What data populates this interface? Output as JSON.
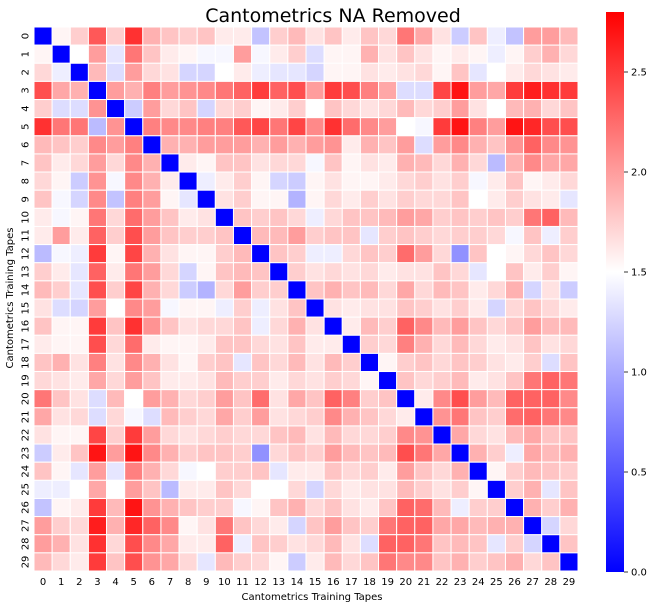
{
  "chart_data": {
    "type": "heatmap",
    "title": "Cantometrics NA Removed",
    "xlabel": "Cantometrics Training Tapes",
    "ylabel": "Cantometrics Training Tapes",
    "row_labels": [
      "0",
      "1",
      "2",
      "3",
      "4",
      "5",
      "6",
      "7",
      "8",
      "9",
      "10",
      "11",
      "12",
      "13",
      "14",
      "15",
      "16",
      "17",
      "18",
      "19",
      "20",
      "21",
      "22",
      "23",
      "24",
      "25",
      "26",
      "27",
      "28",
      "29"
    ],
    "col_labels": [
      "0",
      "1",
      "2",
      "3",
      "4",
      "5",
      "6",
      "7",
      "8",
      "9",
      "10",
      "11",
      "12",
      "13",
      "14",
      "15",
      "16",
      "17",
      "18",
      "19",
      "20",
      "21",
      "22",
      "23",
      "24",
      "25",
      "26",
      "27",
      "28",
      "29"
    ],
    "values": [
      [
        0.0,
        1.55,
        1.75,
        2.35,
        1.75,
        2.55,
        1.9,
        1.8,
        1.75,
        1.8,
        1.6,
        1.6,
        1.15,
        1.75,
        1.85,
        1.65,
        1.8,
        1.6,
        1.8,
        1.7,
        2.2,
        1.95,
        1.65,
        1.2,
        1.8,
        1.4,
        1.15,
        2.0,
        2.0,
        1.85
      ],
      [
        1.55,
        0.0,
        1.5,
        2.0,
        1.35,
        2.2,
        1.8,
        1.6,
        1.55,
        1.45,
        1.45,
        2.0,
        1.45,
        1.6,
        1.75,
        1.3,
        1.55,
        1.55,
        1.9,
        1.65,
        1.8,
        1.65,
        1.55,
        1.6,
        1.55,
        1.4,
        1.55,
        1.75,
        1.9,
        1.7
      ],
      [
        1.7,
        1.4,
        0.0,
        1.85,
        1.3,
        2.0,
        1.7,
        1.65,
        1.25,
        1.25,
        1.5,
        1.6,
        1.4,
        1.35,
        1.35,
        1.25,
        1.55,
        1.55,
        1.65,
        1.6,
        1.65,
        1.7,
        1.55,
        1.8,
        1.35,
        1.5,
        1.6,
        1.7,
        1.65,
        1.6
      ],
      [
        2.4,
        1.95,
        1.9,
        0.0,
        2.0,
        1.9,
        2.15,
        2.0,
        2.05,
        2.1,
        2.2,
        2.3,
        2.5,
        2.3,
        2.4,
        2.0,
        2.5,
        2.4,
        2.15,
        1.95,
        1.3,
        1.3,
        2.45,
        2.7,
        2.0,
        1.95,
        2.5,
        2.65,
        2.55,
        2.5
      ],
      [
        1.75,
        1.3,
        1.3,
        2.05,
        0.0,
        1.2,
        2.0,
        1.7,
        1.8,
        1.25,
        1.7,
        1.75,
        1.55,
        1.6,
        1.75,
        1.5,
        1.8,
        1.7,
        1.65,
        1.7,
        1.85,
        1.7,
        1.75,
        2.0,
        1.65,
        1.5,
        1.85,
        1.9,
        1.7,
        1.8
      ],
      [
        2.55,
        2.2,
        2.2,
        1.1,
        2.05,
        0.0,
        2.15,
        2.1,
        2.1,
        2.15,
        2.15,
        2.35,
        2.45,
        2.2,
        2.45,
        2.1,
        2.55,
        2.25,
        2.1,
        2.0,
        1.5,
        1.45,
        2.5,
        2.7,
        2.15,
        2.0,
        2.7,
        2.6,
        2.4,
        2.4
      ],
      [
        1.85,
        1.8,
        1.75,
        2.1,
        2.0,
        2.15,
        0.0,
        1.9,
        1.9,
        2.0,
        2.0,
        2.0,
        1.9,
        2.0,
        1.9,
        2.0,
        2.05,
        1.6,
        1.9,
        1.8,
        2.0,
        1.3,
        2.0,
        2.1,
        1.9,
        1.8,
        2.05,
        2.3,
        2.1,
        2.05
      ],
      [
        1.8,
        1.6,
        1.7,
        2.0,
        1.7,
        2.1,
        1.9,
        0.0,
        1.6,
        1.55,
        1.8,
        1.8,
        1.65,
        1.7,
        1.7,
        1.45,
        1.8,
        1.55,
        1.65,
        1.6,
        1.9,
        1.85,
        1.7,
        1.9,
        1.7,
        1.1,
        1.9,
        2.1,
        1.95,
        1.95
      ],
      [
        1.7,
        1.55,
        1.2,
        2.05,
        1.45,
        2.1,
        1.9,
        1.6,
        0.0,
        1.4,
        1.6,
        1.75,
        1.55,
        1.25,
        1.2,
        1.55,
        1.65,
        1.55,
        1.55,
        1.6,
        1.7,
        1.75,
        1.65,
        1.75,
        1.45,
        1.6,
        1.8,
        1.55,
        1.6,
        1.7
      ],
      [
        1.8,
        1.45,
        1.25,
        2.1,
        1.15,
        2.15,
        2.0,
        1.55,
        1.35,
        0.0,
        1.65,
        1.75,
        1.55,
        1.55,
        1.05,
        1.55,
        1.7,
        1.6,
        1.75,
        1.65,
        1.75,
        1.7,
        1.7,
        1.8,
        1.5,
        1.6,
        1.75,
        1.65,
        1.6,
        1.35
      ],
      [
        1.6,
        1.45,
        1.55,
        2.2,
        1.7,
        2.25,
        2.0,
        1.8,
        1.6,
        1.65,
        0.0,
        1.8,
        1.75,
        1.8,
        1.7,
        1.4,
        1.7,
        1.8,
        1.8,
        1.85,
        2.0,
        1.95,
        1.75,
        1.8,
        1.75,
        1.8,
        1.75,
        2.2,
        2.3,
        1.85
      ],
      [
        1.6,
        2.0,
        1.6,
        2.3,
        1.75,
        2.4,
        2.0,
        1.8,
        1.75,
        1.75,
        1.8,
        0.0,
        1.85,
        1.85,
        2.0,
        1.75,
        1.8,
        1.8,
        1.35,
        1.75,
        1.8,
        1.75,
        1.7,
        1.75,
        1.75,
        1.7,
        1.45,
        1.8,
        1.4,
        1.75
      ],
      [
        1.1,
        1.45,
        1.4,
        2.5,
        1.55,
        2.45,
        1.9,
        1.65,
        1.55,
        1.55,
        1.75,
        1.85,
        0.0,
        1.8,
        1.75,
        1.4,
        1.4,
        1.7,
        1.8,
        1.75,
        2.25,
        2.0,
        1.7,
        0.85,
        1.8,
        1.5,
        1.55,
        1.7,
        1.8,
        1.7
      ],
      [
        1.75,
        1.6,
        1.35,
        2.3,
        1.6,
        2.2,
        2.0,
        1.7,
        1.25,
        1.55,
        1.8,
        1.85,
        1.8,
        0.0,
        1.75,
        1.65,
        1.7,
        1.65,
        1.7,
        1.6,
        1.65,
        1.65,
        1.8,
        1.7,
        1.35,
        1.5,
        1.8,
        1.6,
        1.75,
        1.55
      ],
      [
        1.85,
        1.75,
        1.35,
        2.4,
        1.75,
        2.45,
        1.9,
        1.7,
        1.2,
        1.05,
        1.7,
        2.0,
        1.75,
        1.75,
        0.0,
        1.8,
        1.9,
        1.8,
        1.85,
        1.7,
        1.95,
        1.7,
        1.85,
        1.8,
        1.6,
        1.7,
        1.9,
        1.25,
        1.65,
        1.2
      ],
      [
        1.65,
        1.3,
        1.25,
        2.0,
        1.5,
        2.1,
        2.0,
        1.45,
        1.55,
        1.55,
        1.4,
        1.75,
        1.4,
        1.65,
        1.8,
        0.0,
        1.65,
        1.6,
        1.65,
        1.65,
        1.8,
        1.75,
        1.65,
        1.75,
        1.6,
        1.25,
        1.7,
        1.8,
        1.7,
        1.6
      ],
      [
        1.8,
        1.55,
        1.55,
        2.5,
        1.8,
        2.55,
        2.05,
        1.8,
        1.65,
        1.7,
        1.7,
        1.8,
        1.4,
        1.7,
        1.9,
        1.65,
        0.0,
        1.6,
        1.85,
        1.75,
        2.3,
        2.1,
        1.85,
        2.0,
        1.8,
        1.7,
        1.8,
        2.0,
        1.85,
        1.85
      ],
      [
        1.6,
        1.55,
        1.55,
        2.4,
        1.7,
        2.25,
        1.6,
        1.55,
        1.55,
        1.6,
        1.8,
        1.8,
        1.7,
        1.65,
        1.8,
        1.6,
        1.6,
        0.0,
        1.75,
        1.7,
        2.15,
        1.9,
        1.7,
        1.85,
        1.7,
        1.6,
        1.65,
        1.8,
        1.65,
        1.7
      ],
      [
        1.8,
        1.9,
        1.65,
        2.15,
        1.65,
        2.1,
        1.9,
        1.65,
        1.55,
        1.75,
        1.8,
        1.35,
        1.8,
        1.7,
        1.85,
        1.65,
        1.85,
        1.75,
        0.0,
        1.55,
        1.75,
        1.8,
        1.7,
        1.8,
        1.75,
        1.65,
        1.6,
        1.75,
        1.3,
        1.8
      ],
      [
        1.7,
        1.65,
        1.6,
        1.95,
        1.7,
        2.0,
        1.8,
        1.6,
        1.6,
        1.65,
        1.85,
        1.75,
        1.75,
        1.6,
        1.7,
        1.65,
        1.75,
        1.7,
        1.55,
        0.0,
        1.8,
        1.7,
        1.75,
        1.85,
        1.6,
        1.65,
        1.8,
        2.2,
        2.3,
        2.2
      ],
      [
        2.2,
        1.8,
        1.65,
        1.3,
        1.85,
        1.5,
        2.0,
        1.9,
        1.7,
        1.75,
        2.0,
        1.8,
        2.25,
        1.65,
        1.95,
        1.8,
        2.3,
        2.15,
        1.75,
        1.8,
        0.0,
        1.6,
        2.1,
        2.4,
        2.0,
        1.85,
        2.3,
        2.3,
        2.3,
        2.1
      ],
      [
        1.95,
        1.65,
        1.7,
        1.3,
        1.7,
        1.45,
        1.3,
        1.85,
        1.75,
        1.7,
        1.95,
        1.75,
        2.0,
        1.65,
        1.7,
        1.75,
        2.1,
        1.9,
        1.8,
        1.7,
        1.6,
        0.0,
        2.05,
        2.2,
        1.8,
        1.75,
        2.25,
        2.3,
        2.2,
        2.1
      ],
      [
        1.65,
        1.55,
        1.55,
        2.45,
        1.75,
        2.5,
        2.0,
        1.7,
        1.65,
        1.7,
        1.75,
        1.7,
        1.7,
        1.8,
        1.85,
        1.65,
        1.85,
        1.7,
        1.7,
        1.75,
        2.1,
        2.05,
        0.0,
        1.95,
        1.7,
        1.65,
        1.85,
        1.95,
        1.8,
        1.8
      ],
      [
        1.2,
        1.6,
        1.8,
        2.7,
        2.0,
        2.7,
        2.1,
        1.9,
        1.75,
        1.8,
        1.8,
        1.75,
        0.85,
        1.7,
        1.8,
        1.75,
        2.0,
        1.85,
        1.8,
        1.85,
        2.4,
        2.2,
        1.95,
        0.0,
        1.9,
        1.75,
        1.4,
        1.95,
        1.85,
        1.9
      ],
      [
        1.8,
        1.55,
        1.35,
        2.0,
        1.35,
        2.15,
        1.9,
        1.7,
        1.45,
        1.5,
        1.75,
        1.75,
        1.8,
        1.35,
        1.6,
        1.6,
        1.8,
        1.7,
        1.75,
        1.6,
        2.0,
        1.8,
        1.7,
        1.9,
        0.0,
        1.55,
        1.75,
        1.85,
        1.8,
        1.75
      ],
      [
        1.4,
        1.4,
        1.5,
        1.95,
        1.5,
        2.0,
        1.8,
        1.1,
        1.6,
        1.6,
        1.8,
        1.7,
        1.5,
        1.5,
        1.7,
        1.25,
        1.7,
        1.6,
        1.65,
        1.65,
        1.85,
        1.75,
        1.65,
        1.75,
        1.55,
        0.0,
        1.75,
        1.9,
        1.35,
        1.8
      ],
      [
        1.15,
        1.55,
        1.6,
        2.5,
        1.85,
        2.7,
        2.05,
        1.9,
        1.8,
        1.75,
        1.75,
        1.45,
        1.55,
        1.8,
        1.9,
        1.7,
        1.8,
        1.65,
        1.6,
        1.8,
        2.3,
        2.25,
        1.85,
        1.4,
        1.75,
        1.75,
        0.0,
        1.9,
        1.75,
        1.9
      ],
      [
        2.0,
        1.75,
        1.7,
        2.65,
        1.9,
        2.6,
        2.3,
        2.1,
        1.55,
        1.65,
        2.2,
        1.8,
        1.7,
        1.6,
        1.25,
        1.8,
        2.0,
        1.8,
        1.75,
        2.2,
        2.3,
        2.3,
        1.95,
        1.95,
        1.85,
        1.9,
        1.9,
        0.0,
        1.25,
        1.7
      ],
      [
        2.0,
        1.9,
        1.65,
        2.55,
        1.7,
        2.4,
        2.1,
        1.95,
        1.6,
        1.6,
        2.3,
        1.4,
        1.8,
        1.75,
        1.65,
        1.7,
        1.85,
        1.65,
        1.3,
        2.3,
        2.3,
        2.2,
        1.8,
        1.85,
        1.8,
        1.35,
        1.75,
        1.25,
        0.0,
        1.8
      ],
      [
        1.85,
        1.7,
        1.6,
        2.5,
        1.8,
        2.4,
        2.05,
        1.95,
        1.7,
        1.35,
        1.85,
        1.75,
        1.7,
        1.55,
        1.2,
        1.6,
        1.85,
        1.7,
        1.8,
        2.2,
        2.1,
        2.1,
        1.8,
        1.9,
        1.75,
        1.8,
        1.9,
        1.7,
        1.8,
        0.0
      ]
    ],
    "vmin": 0.0,
    "vmax": 2.8,
    "colormap": "bwr",
    "colorbar_ticks": [
      "0.0",
      "0.5",
      "1.0",
      "1.5",
      "2.0",
      "2.5"
    ],
    "colorbar_tick_values": [
      0.0,
      0.5,
      1.0,
      1.5,
      2.0,
      2.5
    ],
    "colors": {
      "low": "#0000ff",
      "mid": "#ffffff",
      "high": "#ff0000",
      "cell_border": "#ffffff"
    }
  }
}
